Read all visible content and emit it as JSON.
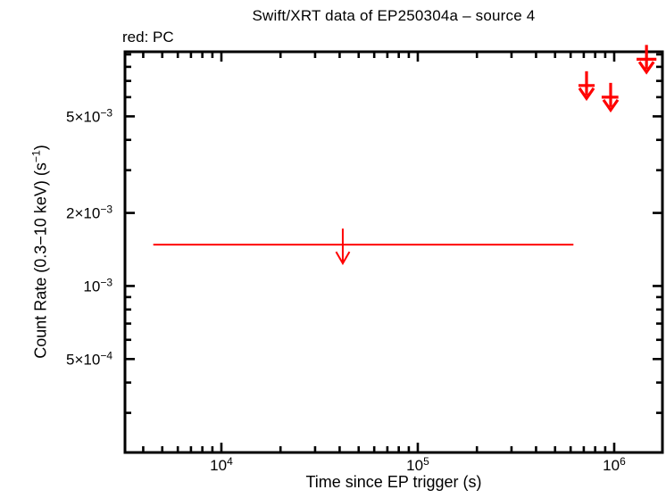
{
  "header": {
    "title": "Swift/XRT data of EP250304a – source 4",
    "legend_note": "red: PC"
  },
  "chart_data": {
    "type": "scatter",
    "title": "Swift/XRT data of EP250304a – source 4",
    "legend_note": "red: PC",
    "xlabel": "Time since EP trigger (s)",
    "ylabel": "Count Rate (0.3−10 keV) (s−1)",
    "ylabel_parts": [
      {
        "text": "Count Rate (0.3−10 keV) (s"
      },
      {
        "sup": "−1"
      },
      {
        "text": ")"
      }
    ],
    "x_scale": "log",
    "y_scale": "log",
    "xlim": [
      3230,
      1760000
    ],
    "ylim": [
      0.000206,
      0.00923
    ],
    "grid": false,
    "frame_color": "#000000",
    "background_color": "#ffffff",
    "x_ticks_major": [
      {
        "value": 10000,
        "label_base": "10",
        "label_sup": "4"
      },
      {
        "value": 100000,
        "label_base": "10",
        "label_sup": "5"
      },
      {
        "value": 1000000,
        "label_base": "10",
        "label_sup": "6"
      }
    ],
    "x_ticks_minor": [
      4000,
      5000,
      6000,
      7000,
      8000,
      9000,
      20000,
      30000,
      40000,
      50000,
      60000,
      70000,
      80000,
      90000,
      200000,
      300000,
      400000,
      500000,
      600000,
      700000,
      800000,
      900000
    ],
    "y_ticks_major": [
      {
        "value": 0.005,
        "label_base": "5×10",
        "label_sup": "−3"
      },
      {
        "value": 0.002,
        "label_base": "2×10",
        "label_sup": "−3"
      },
      {
        "value": 0.001,
        "label_base": "10",
        "label_sup": "−3"
      },
      {
        "value": 0.0005,
        "label_base": "5×10",
        "label_sup": "−4"
      }
    ],
    "y_ticks_minor": [
      0.009,
      0.008,
      0.007,
      0.006,
      0.004,
      0.003,
      0.0009,
      0.0008,
      0.0007,
      0.0006,
      0.0004,
      0.0003
    ],
    "series": [
      {
        "name": "PC mode upper limits",
        "color": "#ff0000",
        "marker": "down-arrow-upper-limit",
        "points": [
          {
            "t": 41500,
            "t_lo": 4500,
            "t_hi": 620000,
            "rate_upper_limit": 0.00148,
            "style": "thin"
          },
          {
            "t": 723000,
            "t_lo": 658000,
            "t_hi": 795000,
            "rate_upper_limit": 0.0067,
            "style": "thick"
          },
          {
            "t": 959000,
            "t_lo": 863000,
            "t_hi": 1050000,
            "rate_upper_limit": 0.006,
            "style": "thick"
          },
          {
            "t": 1460000,
            "t_lo": 1300000,
            "t_hi": 1640000,
            "rate_upper_limit": 0.0086,
            "style": "thick"
          }
        ]
      }
    ]
  }
}
